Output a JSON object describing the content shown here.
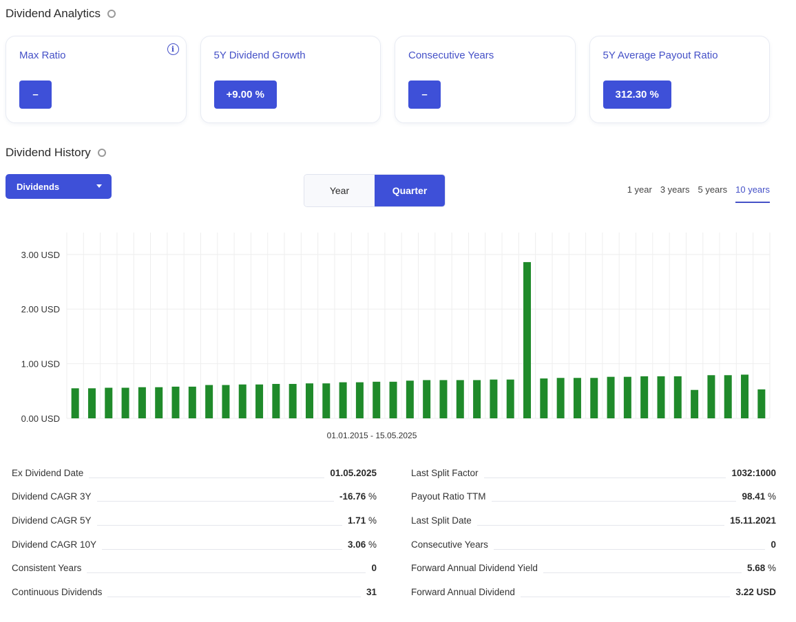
{
  "analytics": {
    "title": "Dividend Analytics",
    "cards": [
      {
        "title": "Max Ratio",
        "value": "–"
      },
      {
        "title": "5Y Dividend Growth",
        "value": "+9.00 %"
      },
      {
        "title": "Consecutive Years",
        "value": "–"
      },
      {
        "title": "5Y Average Payout Ratio",
        "value": "312.30 %"
      }
    ],
    "info_icon": "i"
  },
  "history": {
    "title": "Dividend History",
    "dropdown_label": "Dividends",
    "toggle": {
      "year": "Year",
      "quarter": "Quarter",
      "active": "quarter"
    },
    "ranges": [
      "1 year",
      "3 years",
      "5 years",
      "10 years"
    ],
    "active_range": "10 years",
    "date_range": "01.01.2015 - 15.05.2025"
  },
  "colors": {
    "accent": "#3e50d8",
    "bar": "#1f8a2a"
  },
  "chart_data": {
    "type": "bar",
    "y_tick_labels": [
      "0.00 USD",
      "1.00 USD",
      "2.00 USD",
      "3.00 USD"
    ],
    "ylim": [
      0,
      3.3
    ],
    "grid": true,
    "values": [
      0.55,
      0.55,
      0.56,
      0.56,
      0.57,
      0.57,
      0.58,
      0.58,
      0.61,
      0.61,
      0.62,
      0.62,
      0.63,
      0.63,
      0.64,
      0.64,
      0.66,
      0.66,
      0.67,
      0.67,
      0.69,
      0.7,
      0.7,
      0.7,
      0.7,
      0.71,
      0.71,
      2.86,
      0.73,
      0.74,
      0.74,
      0.74,
      0.76,
      0.76,
      0.77,
      0.77,
      0.77,
      0.52,
      0.79,
      0.79,
      0.8,
      0.53
    ]
  },
  "stats": {
    "left": [
      {
        "label": "Ex Dividend Date",
        "value": "01.05.2025",
        "unit": ""
      },
      {
        "label": "Dividend CAGR 3Y",
        "value": "-16.76",
        "unit": " %"
      },
      {
        "label": "Dividend CAGR 5Y",
        "value": "1.71",
        "unit": " %"
      },
      {
        "label": "Dividend CAGR 10Y",
        "value": "3.06",
        "unit": " %"
      },
      {
        "label": "Consistent Years",
        "value": "0",
        "unit": ""
      },
      {
        "label": "Continuous Dividends",
        "value": "31",
        "unit": ""
      }
    ],
    "right": [
      {
        "label": "Last Split Factor",
        "value": "1032:1000",
        "unit": ""
      },
      {
        "label": "Payout Ratio TTM",
        "value": "98.41",
        "unit": " %"
      },
      {
        "label": "Last Split Date",
        "value": "15.11.2021",
        "unit": ""
      },
      {
        "label": "Consecutive Years",
        "value": "0",
        "unit": ""
      },
      {
        "label": "Forward Annual Dividend Yield",
        "value": "5.68",
        "unit": " %"
      },
      {
        "label": "Forward Annual Dividend",
        "value": "3.22 USD",
        "unit": ""
      }
    ]
  }
}
